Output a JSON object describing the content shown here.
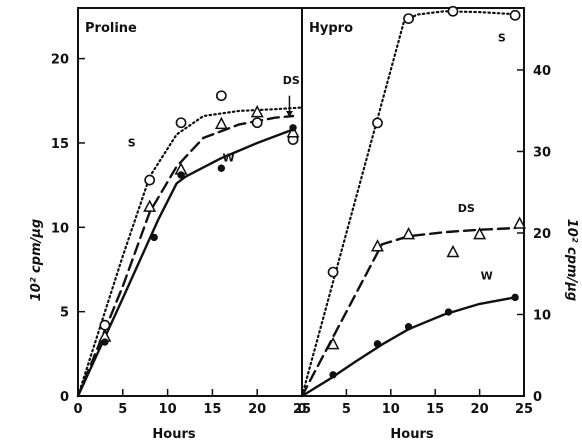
{
  "chart_data": [
    {
      "type": "line",
      "title": "Proline",
      "xlabel": "Hours",
      "ylabel": "10² cpm/µg",
      "xlim": [
        0,
        25
      ],
      "ylim": [
        0,
        23
      ],
      "xticks": [
        "0",
        "5",
        "10",
        "15",
        "20",
        "25"
      ],
      "yticks": [
        "0",
        "5",
        "10",
        "15",
        "20"
      ],
      "series": [
        {
          "name": "S",
          "style": "dotted",
          "marker": "open-circle",
          "x": [
            3,
            8,
            11.5,
            16,
            20,
            24
          ],
          "y": [
            4.2,
            12.8,
            16.2,
            17.8,
            16.2,
            15.2
          ]
        },
        {
          "name": "DS",
          "style": "dashed",
          "marker": "open-triangle",
          "x": [
            3,
            8,
            11.5,
            16,
            20,
            24
          ],
          "y": [
            3.5,
            11.2,
            13.4,
            16.1,
            16.8,
            15.6
          ]
        },
        {
          "name": "W",
          "style": "solid",
          "marker": "filled-circle",
          "x": [
            3,
            8.5,
            11.5,
            16,
            24
          ],
          "y": [
            3.2,
            9.4,
            13.1,
            13.5,
            15.9
          ]
        }
      ],
      "curves": [
        {
          "name": "S",
          "x": [
            0,
            5,
            8,
            11,
            14,
            18,
            22,
            25
          ],
          "y": [
            0,
            8.3,
            13.0,
            15.5,
            16.6,
            16.9,
            17.0,
            17.1
          ]
        },
        {
          "name": "DS",
          "x": [
            0,
            5,
            8,
            11,
            14,
            18,
            22,
            24
          ],
          "y": [
            0,
            6.5,
            10.9,
            13.6,
            15.3,
            16.1,
            16.5,
            16.6
          ]
        },
        {
          "name": "W",
          "x": [
            0,
            5,
            9,
            11,
            12,
            16,
            20,
            24
          ],
          "y": [
            0,
            5.8,
            10.5,
            12.6,
            13.0,
            14.1,
            15.0,
            15.8
          ]
        }
      ],
      "series_labels": [
        {
          "text": "S",
          "x": 6,
          "y": 14.8
        },
        {
          "text": "DS",
          "x": 23.8,
          "y": 18.5
        },
        {
          "text": "W",
          "x": 16.8,
          "y": 13.9
        }
      ]
    },
    {
      "type": "line",
      "title": "Hypro",
      "xlabel": "Hours",
      "ylabel": "10² cpm/µg",
      "xlim": [
        0,
        25
      ],
      "ylim": [
        0,
        47.6
      ],
      "xticks": [
        "0",
        "5",
        "10",
        "15",
        "20",
        "25"
      ],
      "yticks": [
        "0",
        "10",
        "20",
        "30",
        "40"
      ],
      "series": [
        {
          "name": "S",
          "style": "dotted",
          "marker": "open-circle",
          "x": [
            3.5,
            8.5,
            12,
            17,
            24
          ],
          "y": [
            15.2,
            33.5,
            46.3,
            47.2,
            46.7
          ]
        },
        {
          "name": "DS",
          "style": "dashed",
          "marker": "open-triangle",
          "x": [
            3.5,
            8.5,
            12,
            17,
            20,
            24.5
          ],
          "y": [
            6.3,
            18.3,
            19.8,
            17.6,
            19.8,
            21.1
          ]
        },
        {
          "name": "W",
          "style": "solid",
          "marker": "filled-circle",
          "x": [
            3.5,
            8.5,
            12,
            16.5,
            24
          ],
          "y": [
            2.6,
            6.4,
            8.5,
            10.3,
            12.1
          ]
        }
      ],
      "curves": [
        {
          "name": "S",
          "x": [
            0,
            11.5,
            13,
            16,
            20,
            23,
            24.5
          ],
          "y": [
            0,
            46.0,
            46.8,
            47.2,
            47.1,
            46.9,
            46.8
          ]
        },
        {
          "name": "DS",
          "x": [
            0,
            9,
            12,
            16,
            20,
            24
          ],
          "y": [
            0,
            18.6,
            19.6,
            20.1,
            20.4,
            20.6
          ]
        },
        {
          "name": "W",
          "x": [
            0,
            3,
            6,
            9,
            12,
            16,
            20,
            24
          ],
          "y": [
            0,
            2.0,
            4.2,
            6.3,
            8.2,
            10.0,
            11.3,
            12.1
          ]
        }
      ],
      "series_labels": [
        {
          "text": "S",
          "x": 22.5,
          "y": 43.5
        },
        {
          "text": "DS",
          "x": 18.5,
          "y": 22.6
        },
        {
          "text": "W",
          "x": 20.8,
          "y": 14.3
        }
      ]
    }
  ]
}
